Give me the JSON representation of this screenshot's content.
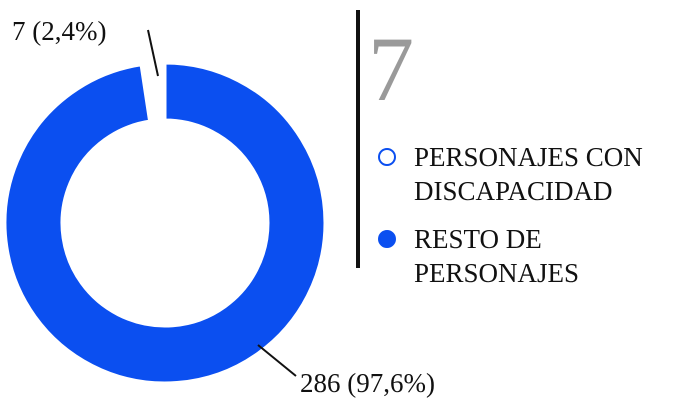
{
  "chart_data": {
    "type": "donut",
    "annotation": "7",
    "categories": [
      "PERSONAJES CON DISCAPACIDAD",
      "RESTO DE PERSONAJES"
    ],
    "values": [
      7,
      286
    ],
    "value_labels": [
      "7 (2,4%)",
      "286 (97,6%)"
    ],
    "colors": [
      "#ffffff",
      "#0b4ff0"
    ]
  }
}
